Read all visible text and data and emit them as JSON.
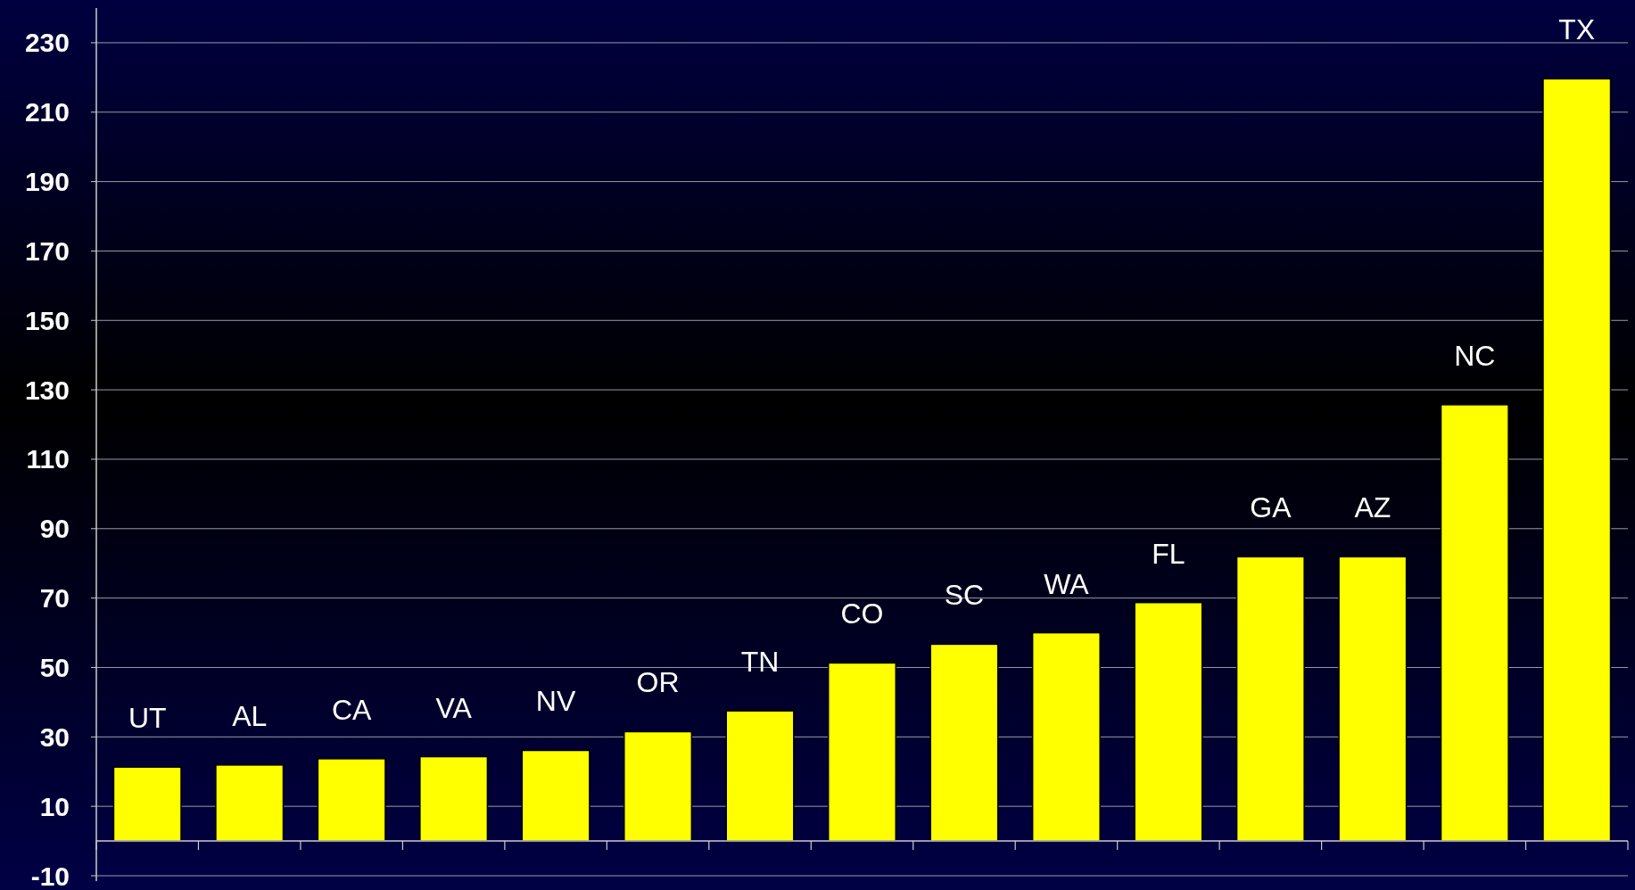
{
  "chart_data": {
    "type": "bar",
    "categories": [
      "UT",
      "AL",
      "CA",
      "VA",
      "NV",
      "OR",
      "TN",
      "CO",
      "SC",
      "WA",
      "FL",
      "GA",
      "AZ",
      "NC",
      "TX"
    ],
    "values": [
      21.3,
      21.9,
      23.7,
      24.3,
      26.1,
      31.5,
      37.5,
      51.3,
      56.7,
      60,
      68.7,
      81.9,
      81.9,
      125.7,
      219.6
    ],
    "color": "#ffff00",
    "ylim": [
      -10,
      240
    ],
    "yticks": [
      -10,
      10,
      30,
      50,
      70,
      90,
      110,
      130,
      150,
      170,
      190,
      210,
      230
    ],
    "grid": "y"
  }
}
